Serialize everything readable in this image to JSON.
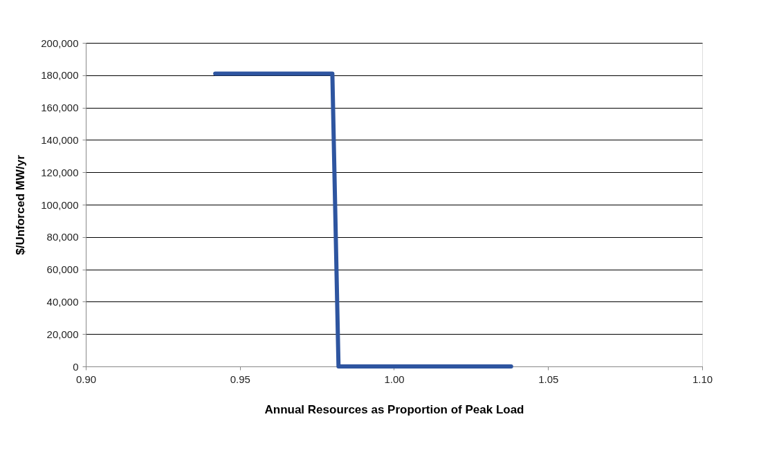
{
  "chart_data": {
    "type": "line",
    "xlabel": "Annual Resources as Proportion of Peak Load",
    "ylabel": "$/Unforced MW/yr",
    "x": [
      0.942,
      0.98,
      0.982,
      1.038
    ],
    "series": [
      {
        "color": "#2e55a0",
        "values": [
          181000,
          181000,
          0,
          0
        ]
      }
    ],
    "xlim": [
      0.9,
      1.1
    ],
    "xticks": [
      {
        "value": 0.9,
        "label": "0.90"
      },
      {
        "value": 0.95,
        "label": "0.95"
      },
      {
        "value": 1.0,
        "label": "1.00"
      },
      {
        "value": 1.05,
        "label": "1.05"
      },
      {
        "value": 1.1,
        "label": "1.10"
      }
    ],
    "ylim": [
      0,
      200000
    ],
    "yticks": [
      {
        "value": 0,
        "label": "0"
      },
      {
        "value": 20000,
        "label": "20,000"
      },
      {
        "value": 40000,
        "label": "40,000"
      },
      {
        "value": 60000,
        "label": "60,000"
      },
      {
        "value": 80000,
        "label": "80,000"
      },
      {
        "value": 100000,
        "label": "100,000"
      },
      {
        "value": 120000,
        "label": "120,000"
      },
      {
        "value": 140000,
        "label": "140,000"
      },
      {
        "value": 160000,
        "label": "160,000"
      },
      {
        "value": 180000,
        "label": "180,000"
      },
      {
        "value": 200000,
        "label": "200,000"
      }
    ],
    "grid": "y",
    "marker": "none",
    "line_style": "solid"
  }
}
